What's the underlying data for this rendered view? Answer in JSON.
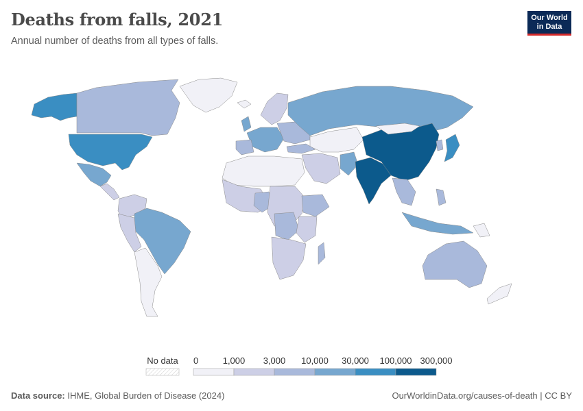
{
  "header": {
    "title": "Deaths from falls, 2021",
    "subtitle": "Annual number of deaths from all types of falls."
  },
  "logo": {
    "line1": "Our World",
    "line2": "in Data"
  },
  "legend": {
    "no_data_label": "No data",
    "tick_labels": [
      "0",
      "1,000",
      "3,000",
      "10,000",
      "30,000",
      "100,000",
      "300,000"
    ],
    "colors": [
      "#f1f1f7",
      "#cdcfe6",
      "#a9b9db",
      "#77a7cf",
      "#3a8ec2",
      "#0c5a8c"
    ],
    "no_data_color": "#e8e8e8"
  },
  "footer": {
    "source_label": "Data source:",
    "source_text": "IHME, Global Burden of Disease (2024)",
    "url": "OurWorldinData.org/causes-of-death | CC BY"
  }
}
